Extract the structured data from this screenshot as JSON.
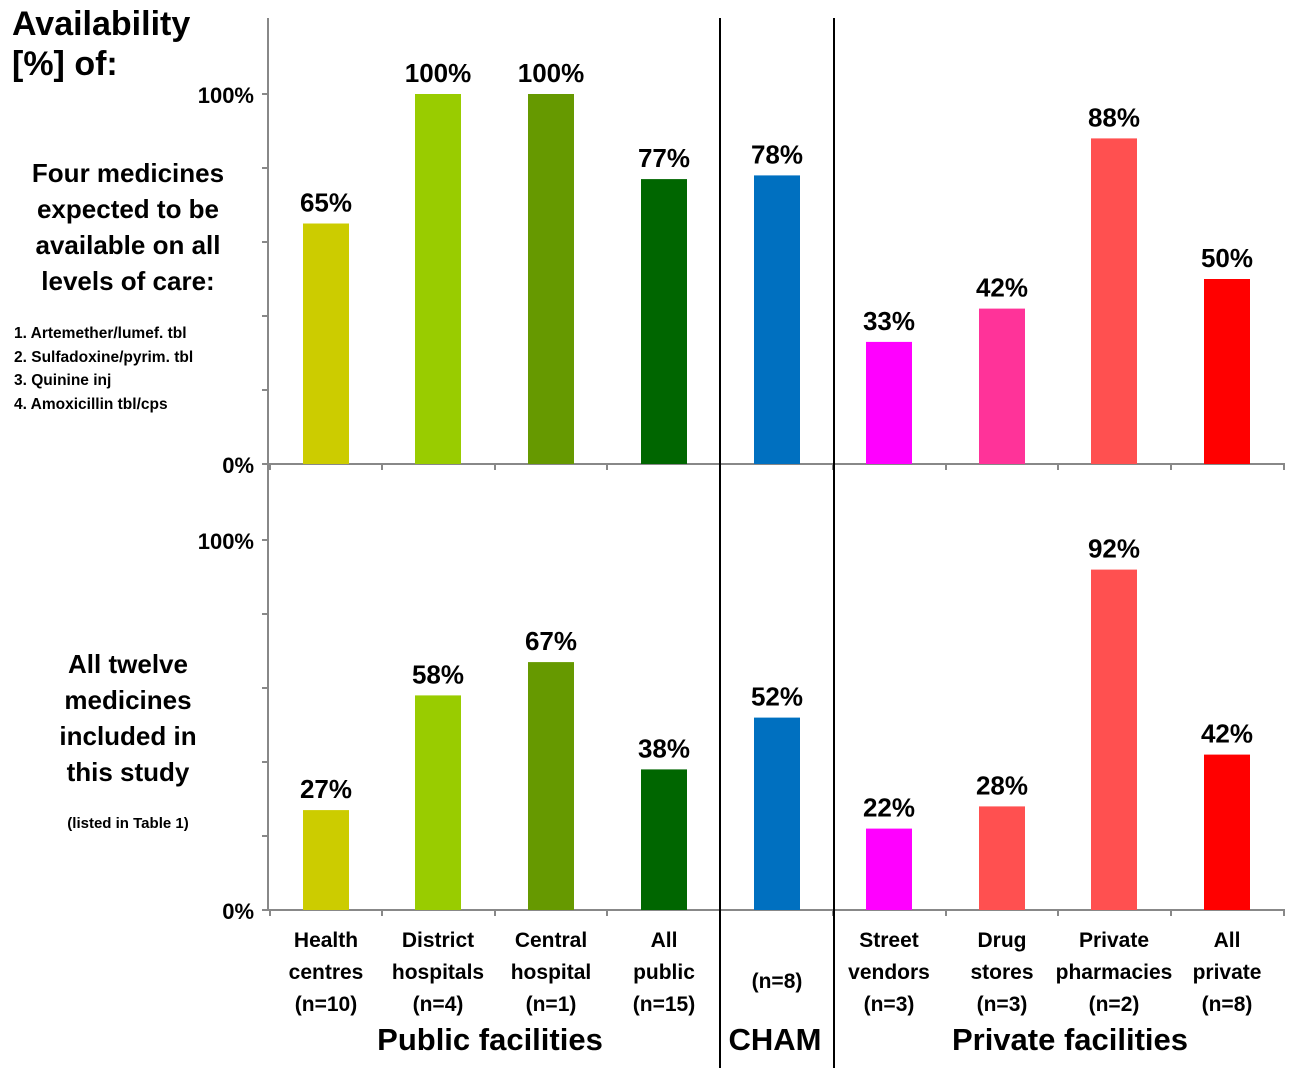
{
  "title_lines": [
    "Availability",
    "[%] of:"
  ],
  "panel1_label_lines": [
    "Four medicines",
    "expected to be",
    "available on all",
    "levels of care:"
  ],
  "medicine_list": [
    "1. Artemether/lumef. tbl",
    "2. Sulfadoxine/pyrim. tbl",
    "3. Quinine inj",
    "4. Amoxicillin tbl/cps"
  ],
  "panel2_label_lines": [
    "All twelve",
    "medicines",
    "included in",
    "this study"
  ],
  "panel2_note": "(listed in Table 1)",
  "group_labels": {
    "public": "Public facilities",
    "cham": "CHAM",
    "private": "Private facilities"
  },
  "colors": {
    "health_centres": "#cccc00",
    "district_hospitals": "#99cc00",
    "central_hospital": "#669900",
    "all_public": "#006600",
    "cham": "#0070c0",
    "street_vendors": "#ff00ff",
    "drug_stores_top": "#ff3399",
    "drug_stores_bottom": "#ff5050",
    "private_pharmacies": "#ff5050",
    "all_private": "#ff0000"
  },
  "chart_data": [
    {
      "type": "bar",
      "title": "Four medicines expected to be available on all levels of care",
      "ylabel": "Availability [%]",
      "ylim": [
        0,
        100
      ],
      "y_ticks": [
        "0%",
        "100%"
      ],
      "categories": [
        [
          "Health",
          "centres",
          "(n=10)"
        ],
        [
          "District",
          "hospitals",
          "(n=4)"
        ],
        [
          "Central",
          "hospital",
          "(n=1)"
        ],
        [
          "All",
          "public",
          "(n=15)"
        ],
        [
          "",
          "(n=8)",
          ""
        ],
        [
          "Street",
          "vendors",
          "(n=3)"
        ],
        [
          "Drug",
          "stores",
          "(n=3)"
        ],
        [
          "Private",
          "pharmacies",
          "(n=2)"
        ],
        [
          "All",
          "private",
          "(n=8)"
        ]
      ],
      "values": [
        65,
        100,
        100,
        77,
        78,
        33,
        42,
        88,
        50
      ],
      "value_labels": [
        "65%",
        "100%",
        "100%",
        "77%",
        "78%",
        "33%",
        "42%",
        "88%",
        "50%"
      ],
      "bar_colors": [
        "#cccc00",
        "#99cc00",
        "#669900",
        "#006600",
        "#0070c0",
        "#ff00ff",
        "#ff3399",
        "#ff5050",
        "#ff0000"
      ]
    },
    {
      "type": "bar",
      "title": "All twelve medicines included in this study",
      "ylabel": "Availability [%]",
      "ylim": [
        0,
        100
      ],
      "y_ticks": [
        "0%",
        "100%"
      ],
      "categories": [
        [
          "Health",
          "centres",
          "(n=10)"
        ],
        [
          "District",
          "hospitals",
          "(n=4)"
        ],
        [
          "Central",
          "hospital",
          "(n=1)"
        ],
        [
          "All",
          "public",
          "(n=15)"
        ],
        [
          "",
          "(n=8)",
          ""
        ],
        [
          "Street",
          "vendors",
          "(n=3)"
        ],
        [
          "Drug",
          "stores",
          "(n=3)"
        ],
        [
          "Private",
          "pharmacies",
          "(n=2)"
        ],
        [
          "All",
          "private",
          "(n=8)"
        ]
      ],
      "values": [
        27,
        58,
        67,
        38,
        52,
        22,
        28,
        92,
        42
      ],
      "value_labels": [
        "27%",
        "58%",
        "67%",
        "38%",
        "52%",
        "22%",
        "28%",
        "92%",
        "42%"
      ],
      "bar_colors": [
        "#cccc00",
        "#99cc00",
        "#669900",
        "#006600",
        "#0070c0",
        "#ff00ff",
        "#ff5050",
        "#ff5050",
        "#ff0000"
      ]
    }
  ]
}
